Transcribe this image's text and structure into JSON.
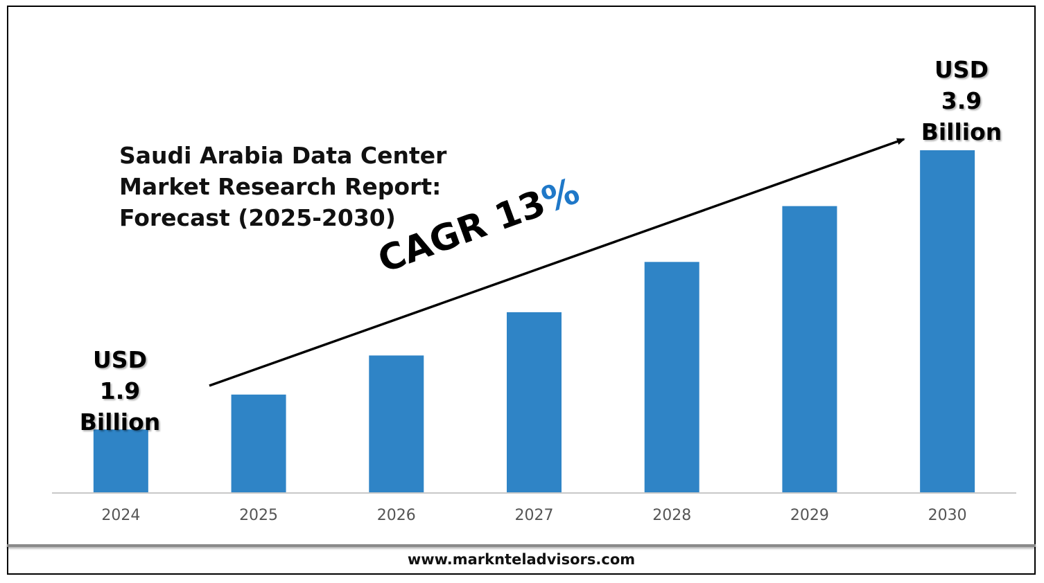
{
  "footer": {
    "url": "www.marknteladvisors.com"
  },
  "colors": {
    "bar": "#2f84c6",
    "axis": "#c8c8c8",
    "tick_text": "#555555",
    "percent_accent": "#1f78c8"
  },
  "chart_data": {
    "type": "bar",
    "title_lines": [
      "Saudi Arabia Data Center",
      "Market Research Report:",
      "Forecast (2025-2030)"
    ],
    "categories": [
      "2024",
      "2025",
      "2026",
      "2027",
      "2028",
      "2029",
      "2030"
    ],
    "values": [
      1.9,
      2.15,
      2.43,
      2.74,
      3.1,
      3.5,
      3.9
    ],
    "unit": "USD Billion",
    "annotation": {
      "text": "CAGR 13",
      "percent_sign": "%"
    },
    "start_label": [
      "USD",
      "1.9",
      "Billion"
    ],
    "end_label": [
      "USD",
      "3.9",
      "Billion"
    ],
    "grid": false,
    "legend": "none",
    "ylim": [
      1.45,
      3.9
    ]
  }
}
